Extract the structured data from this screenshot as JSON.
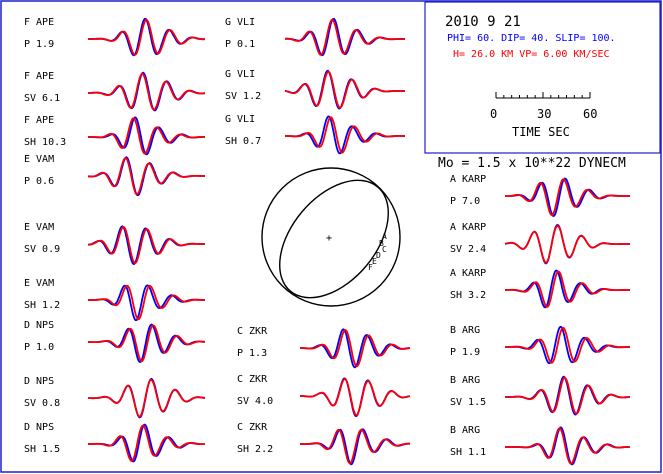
{
  "header": {
    "date": "2010  9 21",
    "params": "PHI=  60. DIP= 40. SLIP= 100.",
    "depth": "H= 26.0 KM  VP= 6.00 KM/SEC",
    "moment": "Mo =  1.5 x 10**22 DYNECM"
  },
  "scale": {
    "ticks": [
      "0",
      "30",
      "60"
    ],
    "label": "TIME  SEC"
  },
  "colors": {
    "frame": "#1f1fcc",
    "observed": "#0000ff",
    "synthetic": "#ff0000",
    "text": "#000000"
  },
  "stations": [
    {
      "name": "F APE",
      "phase": "P  1.9"
    },
    {
      "name": "F APE",
      "phase": "SV 6.1"
    },
    {
      "name": "F APE",
      "phase": "SH 10.3"
    },
    {
      "name": "E VAM",
      "phase": "P  0.6"
    },
    {
      "name": "E VAM",
      "phase": "SV 0.9"
    },
    {
      "name": "E VAM",
      "phase": "SH 1.2"
    },
    {
      "name": "D NPS",
      "phase": "P  1.0"
    },
    {
      "name": "D NPS",
      "phase": "SV 0.8"
    },
    {
      "name": "D NPS",
      "phase": "SH 1.5"
    },
    {
      "name": "G VLI",
      "phase": "P  0.1"
    },
    {
      "name": "G VLI",
      "phase": "SV 1.2"
    },
    {
      "name": "G VLI",
      "phase": "SH 0.7"
    },
    {
      "name": "C ZKR",
      "phase": "P  1.3"
    },
    {
      "name": "C ZKR",
      "phase": "SV 4.0"
    },
    {
      "name": "C ZKR",
      "phase": "SH 2.2"
    },
    {
      "name": "A KARP",
      "phase": "P  7.0"
    },
    {
      "name": "A KARP",
      "phase": "SV 2.4"
    },
    {
      "name": "A KARP",
      "phase": "SH 3.2"
    },
    {
      "name": "B ARG",
      "phase": "P  1.9"
    },
    {
      "name": "B ARG",
      "phase": "SV 1.5"
    },
    {
      "name": "B ARG",
      "phase": "SH 1.1"
    }
  ],
  "beachball": {
    "center_mark": "+",
    "station_letters": [
      "A",
      "B",
      "C",
      "D",
      "E",
      "F"
    ]
  }
}
